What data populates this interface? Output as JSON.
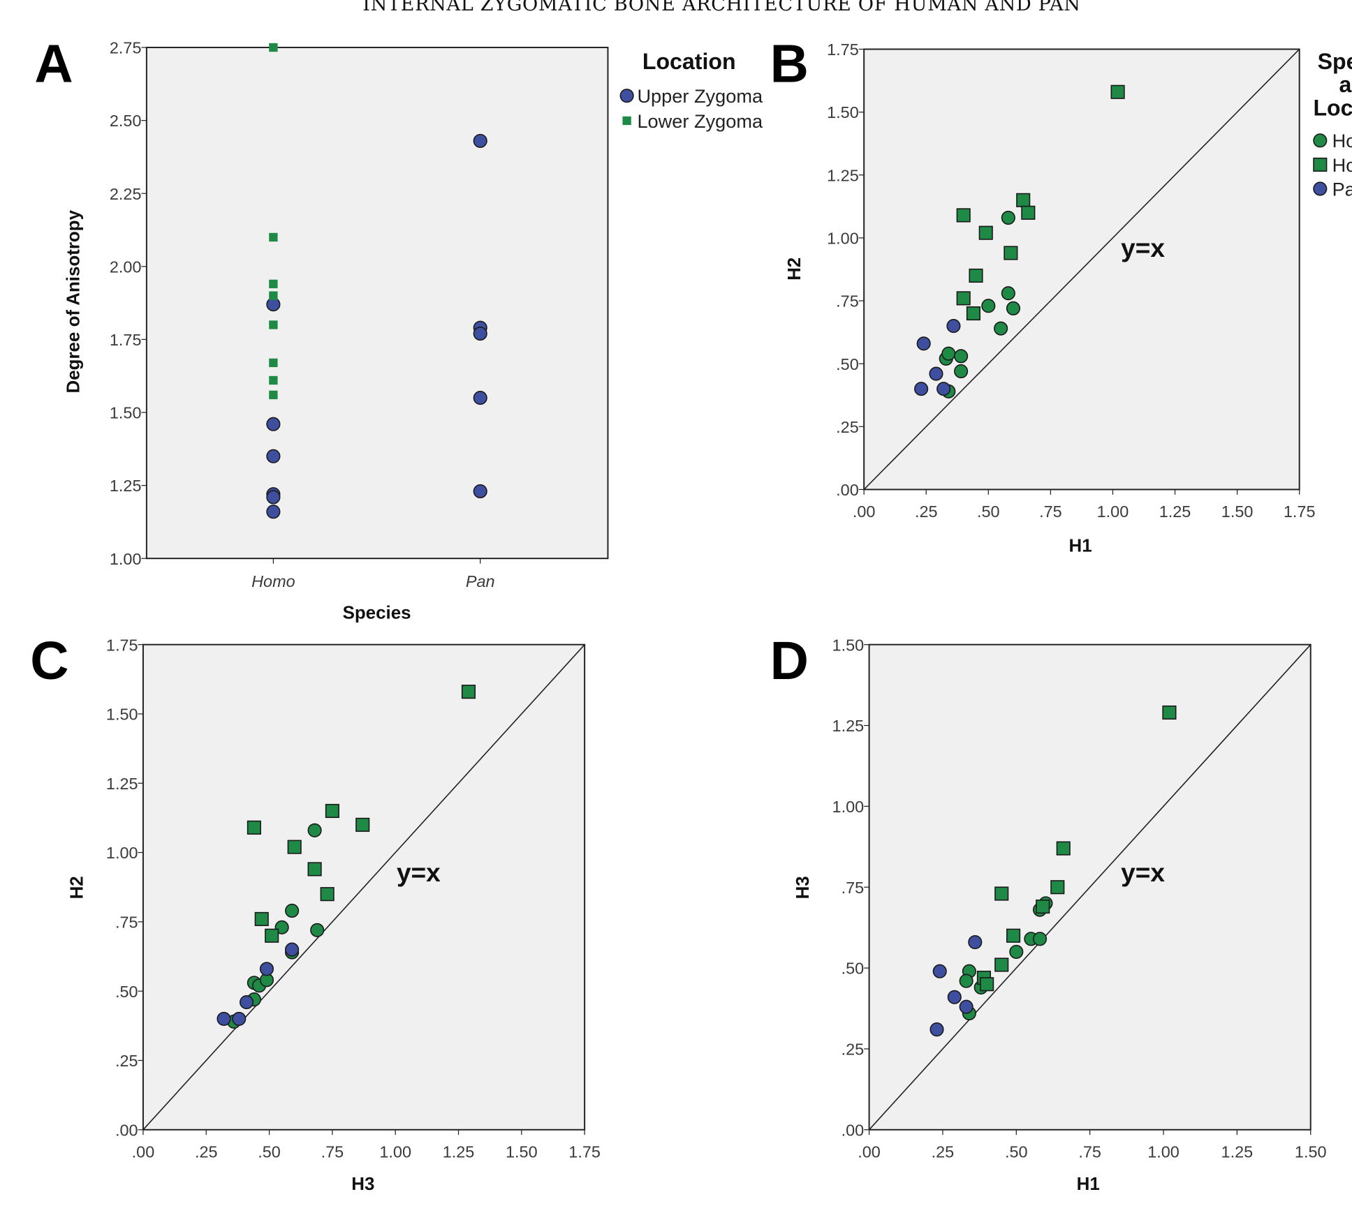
{
  "page_title": "INTERNAL ZYGOMATIC BONE ARCHITECTURE OF HUMAN AND PAN",
  "colors": {
    "upper": "#3f4fa0",
    "lower": "#1f8a45",
    "homo_upper": "#1f8a45",
    "homo_lower": "#1f8a45",
    "pan": "#3f4fa0",
    "plot_bg": "#f0f0f0"
  },
  "chart_data": [
    {
      "panel": "A",
      "type": "scatter",
      "xlabel": "Species",
      "ylabel": "Degree of Anisotropy",
      "categories": [
        "Homo",
        "Pan"
      ],
      "ylim": [
        1.0,
        2.75
      ],
      "yticks": [
        "1.00",
        "1.25",
        "1.50",
        "1.75",
        "2.00",
        "2.25",
        "2.50",
        "2.75"
      ],
      "legend": {
        "title": [
          "Location"
        ],
        "position": "right-outside",
        "entries": [
          "Upper Zygoma",
          "Lower Zygoma"
        ]
      },
      "series": [
        {
          "name": "Upper Zygoma",
          "marker": "circle",
          "color": "#3f4fa0",
          "points": [
            [
              "Homo",
              1.87
            ],
            [
              "Homo",
              1.46
            ],
            [
              "Homo",
              1.35
            ],
            [
              "Homo",
              1.22
            ],
            [
              "Homo",
              1.21
            ],
            [
              "Homo",
              1.16
            ],
            [
              "Pan",
              2.43
            ],
            [
              "Pan",
              1.79
            ],
            [
              "Pan",
              1.77
            ],
            [
              "Pan",
              1.55
            ],
            [
              "Pan",
              1.23
            ]
          ]
        },
        {
          "name": "Lower Zygoma",
          "marker": "square-small",
          "color": "#1f8a45",
          "points": [
            [
              "Homo",
              2.75
            ],
            [
              "Homo",
              2.1
            ],
            [
              "Homo",
              1.94
            ],
            [
              "Homo",
              1.9
            ],
            [
              "Homo",
              1.8
            ],
            [
              "Homo",
              1.67
            ],
            [
              "Homo",
              1.61
            ],
            [
              "Homo",
              1.56
            ]
          ]
        }
      ]
    },
    {
      "panel": "B",
      "type": "scatter",
      "xlabel": "H1",
      "ylabel": "H2",
      "xlim": [
        0,
        1.75
      ],
      "ylim": [
        0,
        1.75
      ],
      "xticks": [
        ".00",
        ".25",
        ".50",
        ".75",
        "1.00",
        "1.25",
        "1.50",
        "1.75"
      ],
      "yticks": [
        ".00",
        ".25",
        ".50",
        ".75",
        "1.00",
        "1.25",
        "1.50",
        "1.75"
      ],
      "reference_line": "y=x",
      "legend": {
        "title": [
          "Spe",
          "a",
          "Loc"
        ],
        "position": "right-outside",
        "entries": [
          "Ho",
          "Ho",
          "Pa"
        ]
      },
      "series": [
        {
          "name": "Homo upper",
          "marker": "circle",
          "color": "#1f8a45",
          "points": [
            [
              0.58,
              1.08
            ],
            [
              0.58,
              0.78
            ],
            [
              0.5,
              0.73
            ],
            [
              0.6,
              0.72
            ],
            [
              0.55,
              0.64
            ],
            [
              0.33,
              0.52
            ],
            [
              0.34,
              0.54
            ],
            [
              0.39,
              0.53
            ],
            [
              0.39,
              0.47
            ],
            [
              0.34,
              0.39
            ]
          ]
        },
        {
          "name": "Homo lower",
          "marker": "square",
          "color": "#1f8a45",
          "points": [
            [
              1.02,
              1.58
            ],
            [
              0.4,
              1.09
            ],
            [
              0.64,
              1.15
            ],
            [
              0.66,
              1.1
            ],
            [
              0.49,
              1.02
            ],
            [
              0.59,
              0.94
            ],
            [
              0.45,
              0.85
            ],
            [
              0.4,
              0.76
            ],
            [
              0.44,
              0.7
            ]
          ]
        },
        {
          "name": "Pan",
          "marker": "circle",
          "color": "#3f4fa0",
          "points": [
            [
              0.36,
              0.65
            ],
            [
              0.24,
              0.58
            ],
            [
              0.29,
              0.46
            ],
            [
              0.23,
              0.4
            ],
            [
              0.32,
              0.4
            ]
          ]
        }
      ]
    },
    {
      "panel": "C",
      "type": "scatter",
      "xlabel": "H3",
      "ylabel": "H2",
      "xlim": [
        0,
        1.75
      ],
      "ylim": [
        0,
        1.75
      ],
      "xticks": [
        ".00",
        ".25",
        ".50",
        ".75",
        "1.00",
        "1.25",
        "1.50",
        "1.75"
      ],
      "yticks": [
        ".00",
        ".25",
        ".50",
        ".75",
        "1.00",
        "1.25",
        "1.50",
        "1.75"
      ],
      "reference_line": "y=x",
      "series": [
        {
          "name": "Homo upper",
          "marker": "circle",
          "color": "#1f8a45",
          "points": [
            [
              0.68,
              1.08
            ],
            [
              0.59,
              0.79
            ],
            [
              0.55,
              0.73
            ],
            [
              0.69,
              0.72
            ],
            [
              0.59,
              0.64
            ],
            [
              0.44,
              0.53
            ],
            [
              0.46,
              0.52
            ],
            [
              0.49,
              0.54
            ],
            [
              0.44,
              0.47
            ],
            [
              0.36,
              0.39
            ]
          ]
        },
        {
          "name": "Homo lower",
          "marker": "square",
          "color": "#1f8a45",
          "points": [
            [
              1.29,
              1.58
            ],
            [
              0.44,
              1.09
            ],
            [
              0.75,
              1.15
            ],
            [
              0.87,
              1.1
            ],
            [
              0.6,
              1.02
            ],
            [
              0.68,
              0.94
            ],
            [
              0.73,
              0.85
            ],
            [
              0.47,
              0.76
            ],
            [
              0.51,
              0.7
            ]
          ]
        },
        {
          "name": "Pan",
          "marker": "circle",
          "color": "#3f4fa0",
          "points": [
            [
              0.59,
              0.65
            ],
            [
              0.49,
              0.58
            ],
            [
              0.41,
              0.46
            ],
            [
              0.32,
              0.4
            ],
            [
              0.38,
              0.4
            ]
          ]
        }
      ]
    },
    {
      "panel": "D",
      "type": "scatter",
      "xlabel": "H1",
      "ylabel": "H3",
      "xlim": [
        0,
        1.5
      ],
      "ylim": [
        0,
        1.5
      ],
      "xticks": [
        ".00",
        ".25",
        ".50",
        ".75",
        "1.00",
        "1.25",
        "1.50"
      ],
      "yticks": [
        ".00",
        ".25",
        ".50",
        ".75",
        "1.00",
        "1.25",
        "1.50"
      ],
      "reference_line": "y=x",
      "series": [
        {
          "name": "Homo upper",
          "marker": "circle",
          "color": "#1f8a45",
          "points": [
            [
              0.6,
              0.7
            ],
            [
              0.58,
              0.68
            ],
            [
              0.55,
              0.59
            ],
            [
              0.58,
              0.59
            ],
            [
              0.5,
              0.55
            ],
            [
              0.34,
              0.49
            ],
            [
              0.33,
              0.46
            ],
            [
              0.38,
              0.44
            ],
            [
              0.34,
              0.36
            ],
            [
              0.59,
              0.69
            ]
          ]
        },
        {
          "name": "Homo lower",
          "marker": "square",
          "color": "#1f8a45",
          "points": [
            [
              1.02,
              1.29
            ],
            [
              0.66,
              0.87
            ],
            [
              0.64,
              0.75
            ],
            [
              0.45,
              0.73
            ],
            [
              0.49,
              0.6
            ],
            [
              0.59,
              0.69
            ],
            [
              0.45,
              0.51
            ],
            [
              0.39,
              0.47
            ],
            [
              0.4,
              0.45
            ]
          ]
        },
        {
          "name": "Pan",
          "marker": "circle",
          "color": "#3f4fa0",
          "points": [
            [
              0.36,
              0.58
            ],
            [
              0.24,
              0.49
            ],
            [
              0.29,
              0.41
            ],
            [
              0.33,
              0.38
            ],
            [
              0.23,
              0.31
            ]
          ]
        }
      ]
    }
  ]
}
